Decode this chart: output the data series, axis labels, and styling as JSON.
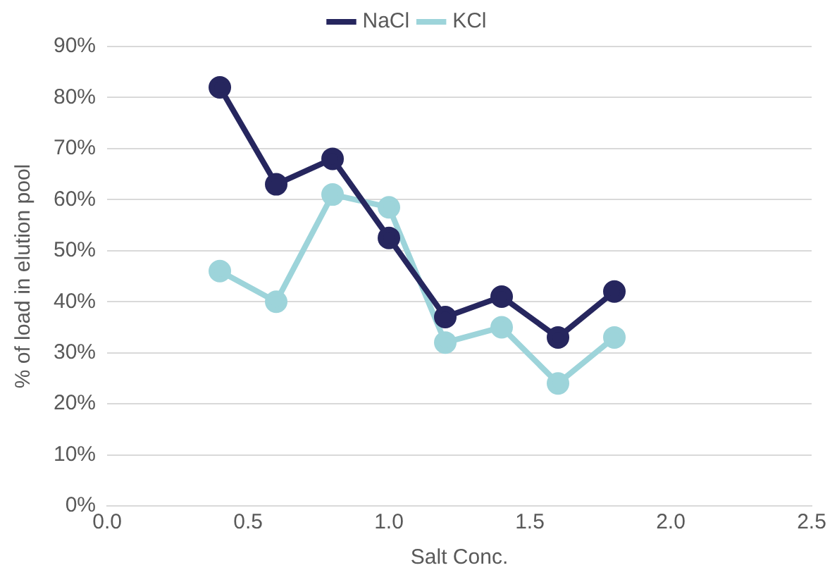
{
  "chart_data": {
    "type": "line",
    "xlabel": "Salt Conc.",
    "ylabel": "% of load in elution pool",
    "x": [
      0.4,
      0.6,
      0.8,
      1.0,
      1.2,
      1.4,
      1.6,
      1.8
    ],
    "series": [
      {
        "name": "NaCl",
        "color": "#26265e",
        "values": [
          82,
          63,
          68,
          52.5,
          37,
          41,
          33,
          42
        ]
      },
      {
        "name": "KCl",
        "color": "#9dd4da",
        "values": [
          46,
          40,
          61,
          58.5,
          32,
          35,
          24,
          33
        ]
      }
    ],
    "xlim": [
      0,
      2.5
    ],
    "xticks": [
      {
        "value": 0,
        "label": "0.0"
      },
      {
        "value": 0.5,
        "label": "0.5"
      },
      {
        "value": 1,
        "label": "1.0"
      },
      {
        "value": 1.5,
        "label": "1.5"
      },
      {
        "value": 2,
        "label": "2.0"
      },
      {
        "value": 2.5,
        "label": "2.5"
      }
    ],
    "ylim": [
      0,
      90
    ],
    "yticks": [
      {
        "value": 0,
        "label": "0%"
      },
      {
        "value": 10,
        "label": "10%"
      },
      {
        "value": 20,
        "label": "20%"
      },
      {
        "value": 30,
        "label": "30%"
      },
      {
        "value": 40,
        "label": "40%"
      },
      {
        "value": 50,
        "label": "50%"
      },
      {
        "value": 60,
        "label": "60%"
      },
      {
        "value": 70,
        "label": "70%"
      },
      {
        "value": 80,
        "label": "80%"
      },
      {
        "value": 90,
        "label": "90%"
      }
    ],
    "grid": "y",
    "legend": "top",
    "marker": "circle",
    "line_style": "solid"
  }
}
